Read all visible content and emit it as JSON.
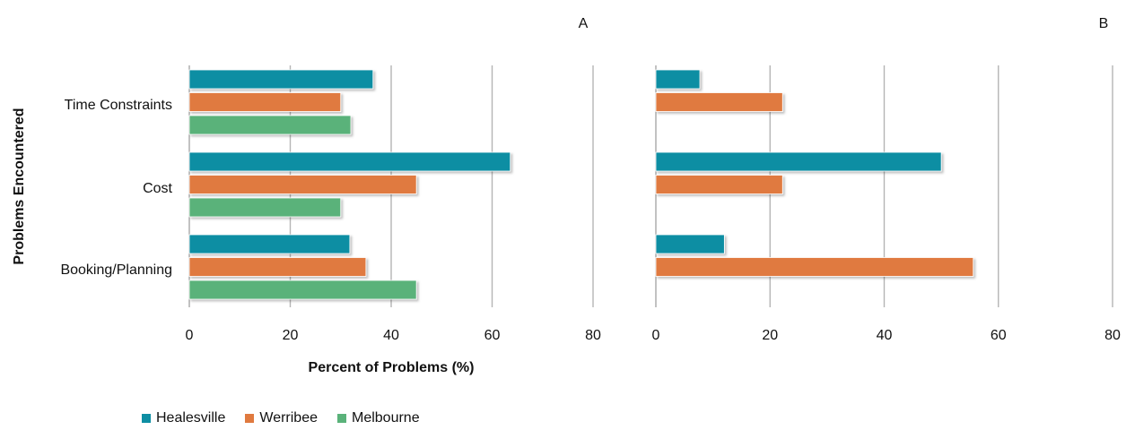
{
  "chart_data": {
    "type": "bar",
    "orientation": "horizontal",
    "categories": [
      "Time Constraints",
      "Cost",
      "Booking/Planning"
    ],
    "ylabel": "Problems Encountered",
    "xlabel": "Percent of Problems (%)",
    "xlim": [
      0,
      80
    ],
    "xticks": [
      "0",
      "20",
      "40",
      "60",
      "80"
    ],
    "legend": {
      "placement": "bottom-left",
      "items": [
        {
          "name": "Healesville",
          "color": "#0e8ea3"
        },
        {
          "name": "Werribee",
          "color": "#e07a3f"
        },
        {
          "name": "Melbourne",
          "color": "#5ab27a"
        }
      ]
    },
    "grid": true,
    "panels": [
      {
        "label": "A",
        "series": [
          {
            "name": "Healesville",
            "values": [
              36.4,
              63.6,
              31.8
            ]
          },
          {
            "name": "Werribee",
            "values": [
              30.0,
              45.0,
              35.0
            ]
          },
          {
            "name": "Melbourne",
            "values": [
              32.0,
              30.0,
              45.0
            ]
          }
        ]
      },
      {
        "label": "B",
        "series": [
          {
            "name": "Healesville",
            "values": [
              7.7,
              50.0,
              12.0
            ]
          },
          {
            "name": "Werribee",
            "values": [
              22.2,
              22.2,
              55.6
            ]
          },
          {
            "name": "Melbourne",
            "values": [
              null,
              null,
              null
            ]
          }
        ]
      }
    ]
  }
}
